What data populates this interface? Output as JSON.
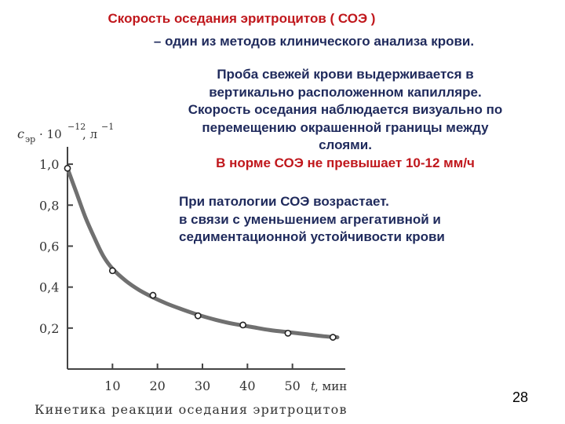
{
  "header": {
    "title": "Скорость оседания эритроцитов ( СОЭ )",
    "subtitle": "– один из методов клинического анализа крови."
  },
  "description": {
    "lines": [
      "Проба свежей крови выдерживается в",
      "вертикально расположенном капилляре.",
      "Скорость оседания наблюдается визуально по",
      "перемещению окрашенной границы между",
      "слоями."
    ],
    "norm": "В норме СОЭ не превышает 10-12 мм/ч"
  },
  "pathology": {
    "lines": [
      "При патологии СОЭ возрастает.",
      "в связи с уменьшением агрегативной и",
      "седиментационной устойчивости крови"
    ]
  },
  "page_number": "28",
  "colors": {
    "accent_red": "#c0171c",
    "text_navy": "#1f2a5c",
    "curve_gray": "#707070"
  },
  "chart_data": {
    "type": "line",
    "ylabel_var": "c",
    "ylabel_sub": "эр",
    "ylabel_rest": "· 10",
    "ylabel_exp": "−12",
    "ylabel_unit": ", л",
    "ylabel_unit_exp": "−1",
    "xlabel_var": "t",
    "xlabel_unit": ", мин",
    "caption": "Кинетика реакции оседания эритроцитов",
    "x_ticks": [
      "10",
      "20",
      "30",
      "40",
      "50"
    ],
    "y_ticks": [
      "1,0",
      "0,8",
      "0,6",
      "0,4",
      "0,2"
    ],
    "x_tick_values": [
      10,
      20,
      30,
      40,
      50
    ],
    "y_tick_values": [
      1.0,
      0.8,
      0.6,
      0.4,
      0.2
    ],
    "xlim": [
      0,
      60
    ],
    "ylim": [
      0,
      1.1
    ],
    "points": {
      "x": [
        0,
        10,
        19,
        29,
        39,
        49,
        59
      ],
      "y": [
        0.98,
        0.48,
        0.36,
        0.26,
        0.215,
        0.175,
        0.155
      ]
    },
    "curve": {
      "x": [
        0,
        2,
        4,
        6,
        8,
        10,
        13,
        16,
        19,
        22,
        25,
        29,
        33,
        37,
        41,
        45,
        49,
        53,
        57,
        60
      ],
      "y": [
        0.98,
        0.86,
        0.74,
        0.64,
        0.55,
        0.49,
        0.43,
        0.385,
        0.35,
        0.32,
        0.295,
        0.265,
        0.24,
        0.22,
        0.205,
        0.19,
        0.18,
        0.17,
        0.16,
        0.155
      ]
    }
  }
}
